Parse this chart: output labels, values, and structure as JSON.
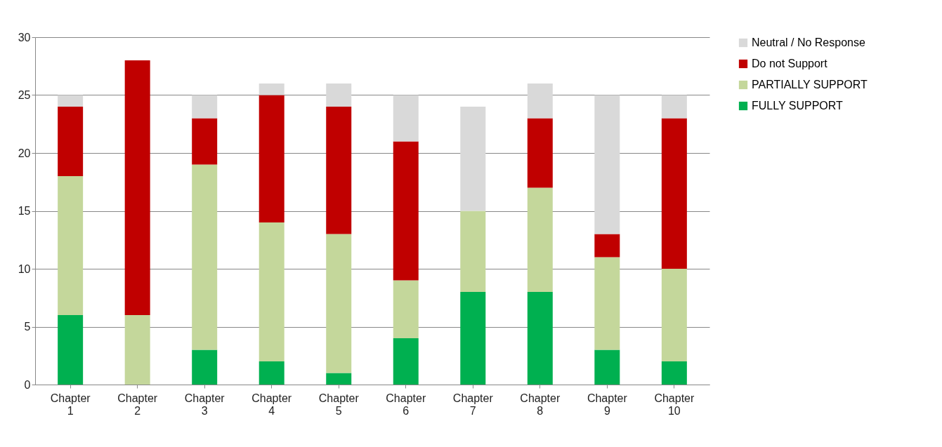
{
  "chart_data": {
    "type": "bar",
    "stacked": true,
    "categories": [
      "Chapter 1",
      "Chapter 2",
      "Chapter 3",
      "Chapter 4",
      "Chapter 5",
      "Chapter 6",
      "Chapter 7",
      "Chapter 8",
      "Chapter 9",
      "Chapter 10"
    ],
    "series": [
      {
        "name": "FULLY SUPPORT",
        "color": "#00b050",
        "values": [
          6,
          0,
          3,
          2,
          1,
          4,
          8,
          8,
          3,
          2
        ]
      },
      {
        "name": "PARTIALLY SUPPORT",
        "color": "#c4d79b",
        "values": [
          12,
          6,
          16,
          12,
          12,
          5,
          7,
          9,
          8,
          8
        ]
      },
      {
        "name": "Do not Support",
        "color": "#c00000",
        "values": [
          6,
          22,
          4,
          11,
          11,
          12,
          0,
          6,
          2,
          13
        ]
      },
      {
        "name": "Neutral / No Response",
        "color": "#d9d9d9",
        "values": [
          1,
          0,
          2,
          1,
          2,
          4,
          9,
          3,
          12,
          2
        ]
      }
    ],
    "ylim": [
      0,
      30
    ],
    "yticks": [
      0,
      5,
      10,
      15,
      20,
      25,
      30
    ],
    "grid": "y",
    "legend": "right"
  }
}
